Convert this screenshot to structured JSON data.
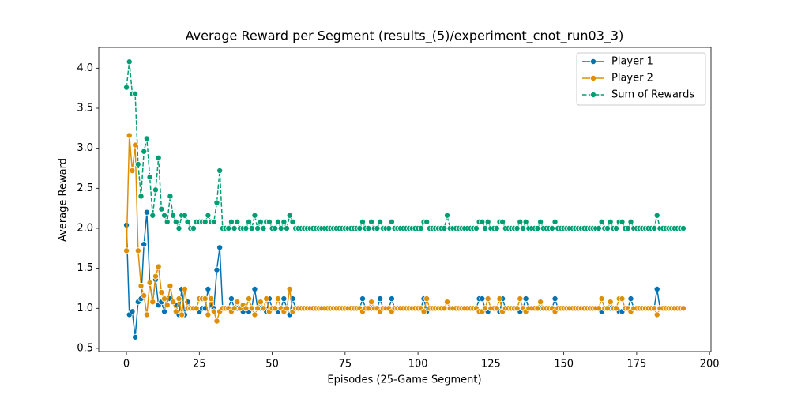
{
  "chart_data": {
    "type": "line",
    "title": "Average Reward per Segment (results_(5)/experiment_cnot_run03_3)",
    "xlabel": "Episodes (25-Game Segment)",
    "ylabel": "Average Reward",
    "x": [
      0,
      1,
      2,
      3,
      4,
      5,
      6,
      7,
      8,
      9,
      10,
      11,
      12,
      13,
      14,
      15,
      16,
      17,
      18,
      19,
      20,
      21,
      22,
      23,
      24,
      25,
      26,
      27,
      28,
      29,
      30,
      31,
      32,
      33,
      34,
      35,
      36,
      37,
      38,
      39,
      40,
      41,
      42,
      43,
      44,
      45,
      46,
      47,
      48,
      49,
      50,
      51,
      52,
      53,
      54,
      55,
      56,
      57,
      58,
      59,
      60,
      61,
      62,
      63,
      64,
      65,
      66,
      67,
      68,
      69,
      70,
      71,
      72,
      73,
      74,
      75,
      76,
      77,
      78,
      79,
      80,
      81,
      82,
      83,
      84,
      85,
      86,
      87,
      88,
      89,
      90,
      91,
      92,
      93,
      94,
      95,
      96,
      97,
      98,
      99,
      100,
      101,
      102,
      103,
      104,
      105,
      106,
      107,
      108,
      109,
      110,
      111,
      112,
      113,
      114,
      115,
      116,
      117,
      118,
      119,
      120,
      121,
      122,
      123,
      124,
      125,
      126,
      127,
      128,
      129,
      130,
      131,
      132,
      133,
      134,
      135,
      136,
      137,
      138,
      139,
      140,
      141,
      142,
      143,
      144,
      145,
      146,
      147,
      148,
      149,
      150,
      151,
      152,
      153,
      154,
      155,
      156,
      157,
      158,
      159,
      160,
      161,
      162,
      163,
      164,
      165,
      166,
      167,
      168,
      169,
      170,
      171,
      172,
      173,
      174,
      175,
      176,
      177,
      178,
      179,
      180,
      181,
      182,
      183,
      184,
      185,
      186,
      187,
      188,
      189,
      190,
      191
    ],
    "series": [
      {
        "name": "Player 1",
        "color": "#0173b2",
        "linestyle": "solid",
        "values": [
          2.04,
          0.92,
          0.96,
          0.64,
          1.08,
          1.12,
          1.8,
          2.2,
          1.32,
          1.08,
          1.36,
          1.04,
          1.08,
          0.96,
          1.12,
          1.12,
          1.08,
          1.04,
          0.92,
          1.24,
          0.92,
          1.08,
          1,
          1,
          1,
          0.96,
          1,
          1,
          1.24,
          1.04,
          1,
          1.48,
          1.76,
          1,
          1,
          1,
          1.12,
          1,
          1,
          1,
          0.96,
          1,
          0.96,
          1,
          1.24,
          1,
          1,
          1,
          0.96,
          1.12,
          1,
          1,
          0.96,
          1,
          1.12,
          1,
          0.92,
          1.12,
          1,
          1,
          1,
          1,
          1,
          1,
          1,
          1,
          1,
          1,
          1,
          1,
          1,
          1,
          1,
          1,
          1,
          1,
          1,
          1,
          1,
          1,
          1,
          1.12,
          1,
          1,
          1,
          1,
          1,
          1.12,
          1,
          1,
          1,
          1.12,
          1,
          1,
          1,
          1,
          1,
          1,
          1,
          1,
          1,
          1,
          1.12,
          0.96,
          1,
          1,
          1,
          1,
          1,
          1,
          1.08,
          1,
          1,
          1,
          1,
          1,
          1,
          1,
          1,
          1,
          1,
          1.12,
          1.12,
          1,
          0.96,
          1,
          1,
          1,
          0.96,
          1.12,
          1,
          1,
          1,
          1,
          1,
          0.96,
          1,
          1.12,
          1,
          1,
          1,
          1,
          1,
          1,
          1,
          1,
          1,
          1.12,
          1,
          1,
          1,
          1,
          1,
          1,
          1,
          1,
          1,
          1,
          1,
          1,
          1,
          1,
          1,
          0.96,
          1,
          1,
          1,
          1,
          1,
          0.96,
          0.96,
          1,
          1,
          1.12,
          1,
          1,
          1,
          1,
          1,
          1,
          1,
          1,
          1.24,
          1,
          1,
          1,
          1,
          1,
          1,
          1,
          1,
          1
        ]
      },
      {
        "name": "Player 2",
        "color": "#de8f05",
        "linestyle": "solid",
        "values": [
          1.72,
          3.16,
          2.72,
          3.04,
          1.72,
          1.28,
          1.16,
          0.92,
          1.32,
          1.08,
          1.4,
          1.52,
          1.2,
          1.12,
          1.04,
          1.28,
          1.08,
          0.96,
          1.12,
          0.92,
          1.24,
          1,
          1,
          1,
          1,
          1.12,
          1.12,
          1.12,
          0.92,
          1.12,
          0.96,
          0.84,
          0.96,
          1,
          1,
          1,
          0.96,
          1,
          1.08,
          1,
          1.04,
          1,
          1.12,
          1,
          0.92,
          1,
          1.08,
          1,
          1.12,
          0.96,
          1,
          1,
          1.12,
          1,
          0.96,
          1,
          1.24,
          0.96,
          1,
          1,
          1,
          1,
          1,
          1,
          1,
          1,
          1,
          1,
          1,
          1,
          1,
          1,
          1,
          1,
          1,
          1,
          1,
          1,
          1,
          1,
          1,
          0.96,
          1,
          1,
          1.08,
          1,
          1,
          0.96,
          1,
          1,
          1,
          0.96,
          1,
          1,
          1,
          1,
          1,
          1,
          1,
          1,
          1,
          1,
          0.96,
          1.12,
          1,
          1,
          1,
          1,
          1,
          1,
          1.08,
          1,
          1,
          1,
          1,
          1,
          1,
          1,
          1,
          1,
          1,
          0.96,
          0.96,
          1,
          1.12,
          1,
          1,
          1,
          1.12,
          0.96,
          1,
          1,
          1,
          1,
          1,
          1.12,
          1,
          0.96,
          1,
          1,
          1,
          1,
          1.08,
          1,
          1,
          1,
          1,
          0.96,
          1,
          1,
          1,
          1,
          1,
          1,
          1,
          1,
          1,
          1,
          1,
          1,
          1,
          1,
          1,
          1.12,
          1,
          1,
          1.08,
          1,
          1,
          1.12,
          1.12,
          1,
          1,
          0.96,
          1,
          1,
          1,
          1,
          1,
          1,
          1,
          1,
          0.92,
          1,
          1,
          1,
          1,
          1,
          1,
          1,
          1,
          1
        ]
      },
      {
        "name": "Sum of Rewards",
        "color": "#029e73",
        "linestyle": "dashed",
        "values": [
          3.76,
          4.08,
          3.68,
          3.68,
          2.8,
          2.4,
          2.96,
          3.12,
          2.64,
          2.16,
          2.48,
          2.88,
          2.24,
          2.16,
          2.08,
          2.4,
          2.16,
          2.08,
          2.0,
          2.16,
          2.16,
          2.08,
          2,
          2,
          2.08,
          2.08,
          2.08,
          2.08,
          2.16,
          2.08,
          2.08,
          2.32,
          2.72,
          2,
          2,
          2,
          2.08,
          2,
          2.08,
          2,
          2,
          2,
          2.08,
          2,
          2.16,
          2,
          2.08,
          2,
          2.08,
          2.08,
          2,
          2,
          2.08,
          2,
          2.08,
          2,
          2.16,
          2.08,
          2,
          2,
          2,
          2,
          2,
          2,
          2,
          2,
          2,
          2,
          2,
          2,
          2,
          2,
          2,
          2,
          2,
          2,
          2,
          2,
          2,
          2,
          2,
          2.08,
          2,
          2,
          2.08,
          2,
          2,
          2.08,
          2,
          2,
          2,
          2.08,
          2,
          2,
          2,
          2,
          2,
          2,
          2,
          2,
          2,
          2,
          2.08,
          2.08,
          2,
          2,
          2,
          2,
          2,
          2,
          2.16,
          2,
          2,
          2,
          2,
          2,
          2,
          2,
          2,
          2,
          2,
          2.08,
          2.08,
          2,
          2.08,
          2,
          2,
          2,
          2.08,
          2.08,
          2,
          2,
          2,
          2,
          2,
          2.08,
          2,
          2.08,
          2,
          2,
          2,
          2,
          2.08,
          2,
          2,
          2,
          2,
          2.08,
          2,
          2,
          2,
          2,
          2,
          2,
          2,
          2,
          2,
          2,
          2,
          2,
          2,
          2,
          2,
          2.08,
          2,
          2,
          2.08,
          2,
          2,
          2.08,
          2.08,
          2,
          2,
          2.08,
          2,
          2,
          2,
          2,
          2,
          2,
          2,
          2,
          2.16,
          2,
          2,
          2,
          2,
          2,
          2,
          2,
          2,
          2
        ]
      }
    ],
    "xlim": [
      -9.5,
      200.5
    ],
    "ylim": [
      0.46,
      4.26
    ],
    "xticks": [
      0,
      25,
      50,
      75,
      100,
      125,
      150,
      175,
      200
    ],
    "yticks": [
      0.5,
      {
        "value": 1,
        "label": "1.0"
      },
      1.5,
      {
        "value": 2,
        "label": "2.0"
      },
      2.5,
      {
        "value": 3,
        "label": "3.0"
      },
      3.5,
      {
        "value": 4,
        "label": "4.0"
      }
    ],
    "grid": false,
    "legend": "upper right"
  }
}
